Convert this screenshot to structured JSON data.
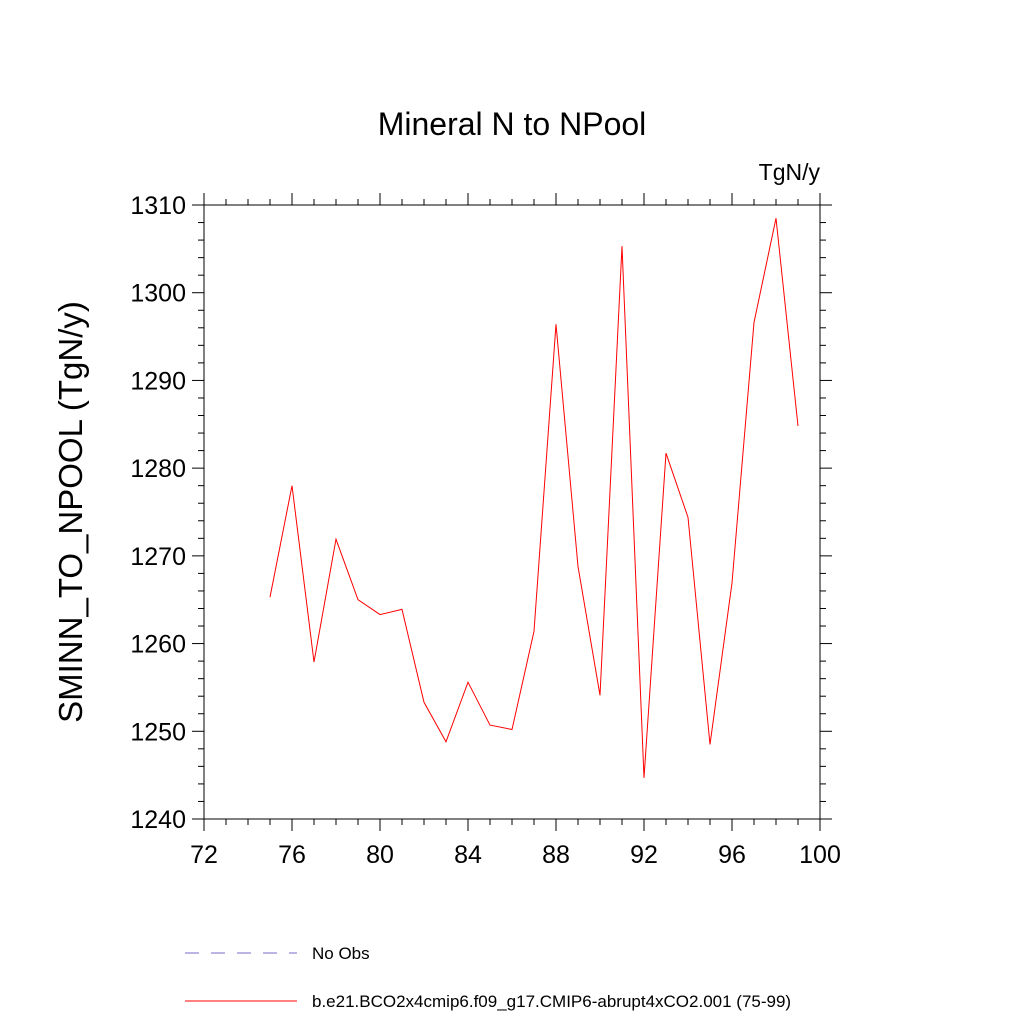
{
  "chart_data": {
    "type": "line",
    "title": "Mineral N to NPool",
    "units_label": "TgN/y",
    "xlabel": "",
    "ylabel": "SMINN_TO_NPOOL  (TgN/y)",
    "xlim": [
      72,
      100
    ],
    "ylim": [
      1240,
      1310
    ],
    "x_ticks": [
      72,
      76,
      80,
      84,
      88,
      92,
      96,
      100
    ],
    "y_ticks": [
      1240,
      1250,
      1260,
      1270,
      1280,
      1290,
      1300,
      1310
    ],
    "grid": false,
    "legend_position": "bottom",
    "series": [
      {
        "name": "b.e21.BCO2x4cmip6.f09_g17.CMIP6-abrupt4xCO2.001 (75-99)",
        "color": "#ff0000",
        "style": "solid",
        "x": [
          75,
          76,
          77,
          78,
          79,
          80,
          81,
          82,
          83,
          84,
          85,
          86,
          87,
          88,
          89,
          90,
          91,
          92,
          93,
          94,
          95,
          96,
          97,
          98,
          99
        ],
        "y": [
          1265.3,
          1278.0,
          1257.9,
          1271.9,
          1265.0,
          1263.3,
          1263.9,
          1253.3,
          1248.8,
          1255.6,
          1250.7,
          1250.2,
          1261.4,
          1296.4,
          1268.8,
          1254.1,
          1305.3,
          1244.7,
          1281.7,
          1274.4,
          1248.5,
          1266.9,
          1296.6,
          1308.5,
          1284.8
        ]
      }
    ],
    "legend": [
      {
        "label": "No Obs",
        "color": "#7b68c8",
        "style": "dashed"
      },
      {
        "label": "b.e21.BCO2x4cmip6.f09_g17.CMIP6-abrupt4xCO2.001 (75-99)",
        "color": "#ff0000",
        "style": "solid"
      }
    ]
  }
}
